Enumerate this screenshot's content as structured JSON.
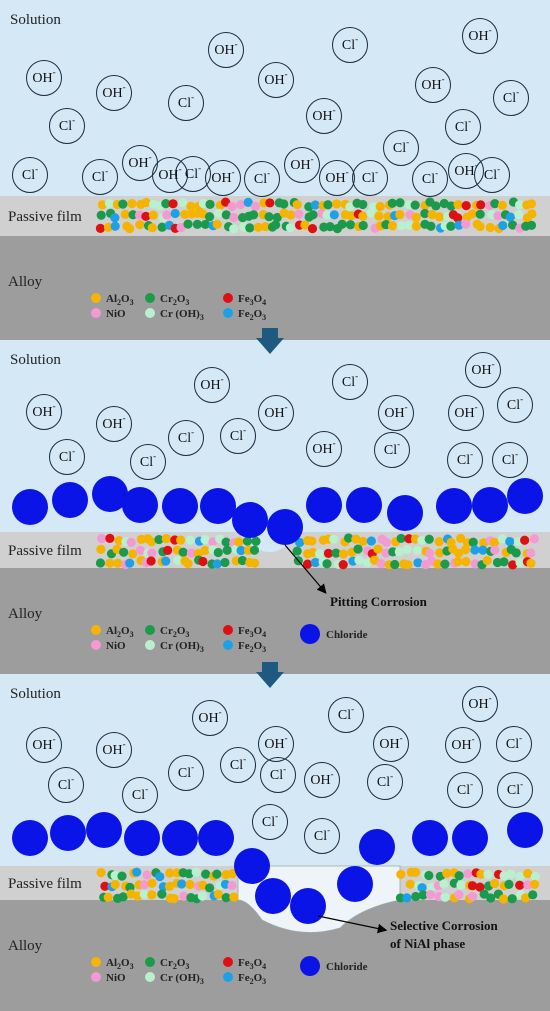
{
  "labels": {
    "solution": "Solution",
    "passive_film": "Passive film",
    "alloy": "Alloy",
    "pitting": "Pitting Corrosion",
    "selective_1": "Selective Corrosion",
    "selective_2": "of NiAl phase",
    "chloride": "Chloride"
  },
  "ions": {
    "cl": {
      "base": "Cl",
      "sup": "-"
    },
    "oh": {
      "base": "OH",
      "sup": "-"
    }
  },
  "legend": [
    {
      "key": "al2o3",
      "base": "Al",
      "s1": "2",
      "mid": "O",
      "s2": "3",
      "tail": "",
      "color": "#f5b400"
    },
    {
      "key": "cr2o3",
      "base": "Cr",
      "s1": "2",
      "mid": "O",
      "s2": "3",
      "tail": "",
      "color": "#1a9a4a"
    },
    {
      "key": "fe3o4",
      "base": "Fe",
      "s1": "3",
      "mid": "O",
      "s2": "4",
      "tail": "",
      "color": "#dd1111"
    },
    {
      "key": "nio",
      "base": "NiO",
      "s1": "",
      "mid": "",
      "s2": "",
      "tail": "",
      "color": "#f49ad2"
    },
    {
      "key": "croh3",
      "base": "Cr (OH)",
      "s1": "3",
      "mid": "",
      "s2": "",
      "tail": "",
      "color": "#b9f0cf"
    },
    {
      "key": "fe2o3",
      "base": "Fe",
      "s1": "2",
      "mid": "O",
      "s2": "3",
      "tail": "",
      "color": "#1ea0e6"
    }
  ],
  "colors": {
    "solution": "#d5e8f5",
    "passive_film": "#d0d0d0",
    "alloy": "#9d9d9d",
    "chloride": "#0a14e6",
    "arrow": "#1e5a80"
  }
}
